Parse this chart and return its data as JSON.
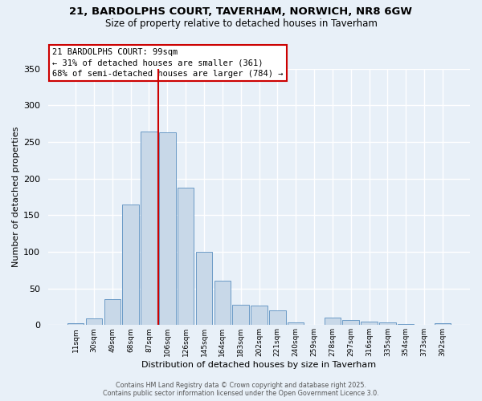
{
  "title_line1": "21, BARDOLPHS COURT, TAVERHAM, NORWICH, NR8 6GW",
  "title_line2": "Size of property relative to detached houses in Taverham",
  "xlabel": "Distribution of detached houses by size in Taverham",
  "ylabel": "Number of detached properties",
  "bar_labels": [
    "11sqm",
    "30sqm",
    "49sqm",
    "68sqm",
    "87sqm",
    "106sqm",
    "126sqm",
    "145sqm",
    "164sqm",
    "183sqm",
    "202sqm",
    "221sqm",
    "240sqm",
    "259sqm",
    "278sqm",
    "297sqm",
    "316sqm",
    "335sqm",
    "354sqm",
    "373sqm",
    "392sqm"
  ],
  "bar_values": [
    2,
    9,
    35,
    165,
    264,
    263,
    188,
    100,
    61,
    28,
    27,
    20,
    4,
    0,
    10,
    7,
    5,
    4,
    1,
    0,
    3
  ],
  "bar_color": "#c8d8e8",
  "bar_edge_color": "#5a8fc0",
  "background_color": "#e8f0f8",
  "grid_color": "#ffffff",
  "vline_x": 4.5,
  "vline_color": "#cc0000",
  "annotation_text": "21 BARDOLPHS COURT: 99sqm\n← 31% of detached houses are smaller (361)\n68% of semi-detached houses are larger (784) →",
  "annotation_box_color": "#ffffff",
  "annotation_box_edge": "#cc0000",
  "ylim": [
    0,
    350
  ],
  "yticks": [
    0,
    50,
    100,
    150,
    200,
    250,
    300,
    350
  ],
  "footer_line1": "Contains HM Land Registry data © Crown copyright and database right 2025.",
  "footer_line2": "Contains public sector information licensed under the Open Government Licence 3.0."
}
